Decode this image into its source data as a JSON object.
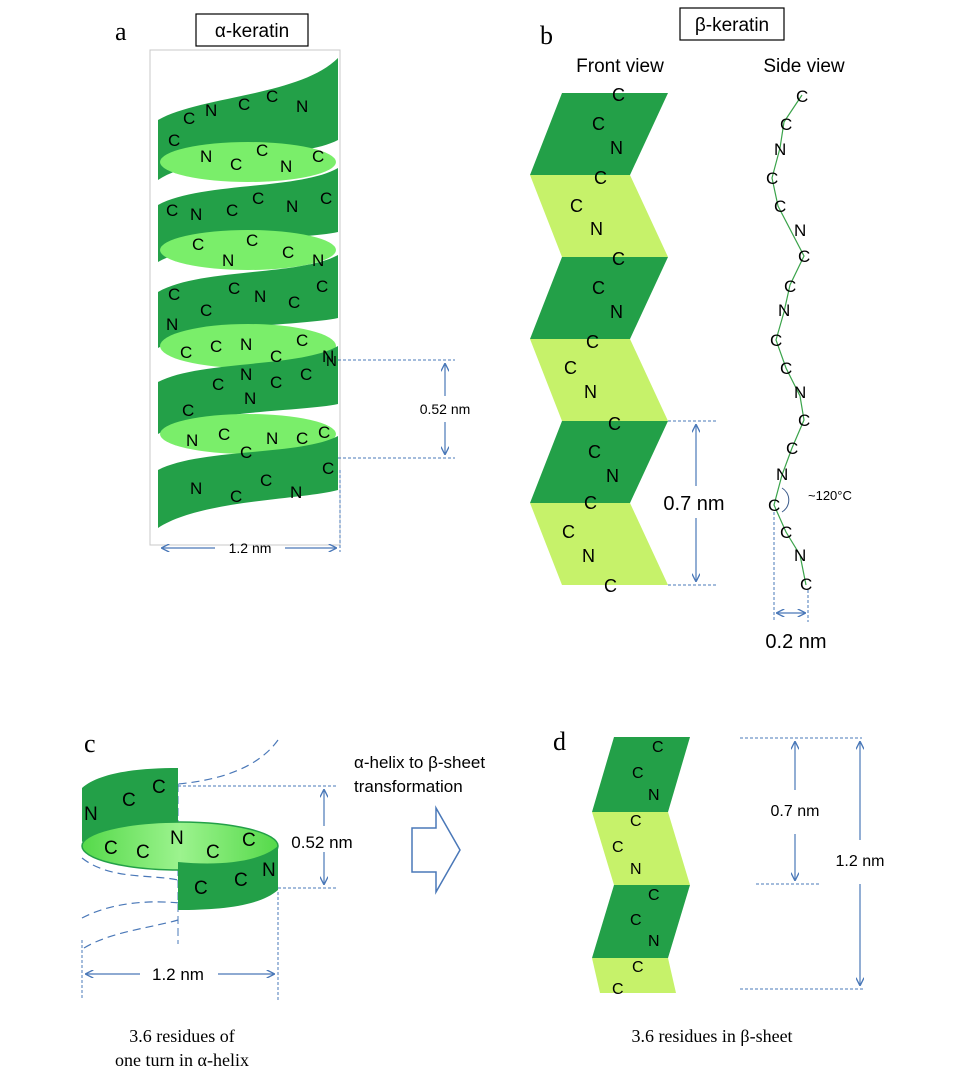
{
  "panel_a": {
    "letter": "a",
    "title": "α-keratin",
    "dim_pitch": "0.52 nm",
    "dim_width": "1.2 nm",
    "residues": [
      [
        "C",
        "N",
        "C",
        "N"
      ],
      [
        "C",
        "C"
      ],
      [
        "C",
        "N",
        "C",
        "N",
        "C"
      ],
      [
        "C",
        "N",
        "C",
        "N",
        "C"
      ],
      [
        "C",
        "N",
        "C",
        "N",
        "C"
      ],
      [
        "C",
        "N",
        "C",
        "N"
      ],
      [
        "N",
        "C",
        "C",
        "C",
        "C"
      ],
      [
        "C",
        "C",
        "N",
        "C",
        "C",
        "N"
      ],
      [
        "C",
        "N",
        "C",
        "C"
      ],
      [
        "C",
        "N",
        "C"
      ],
      [
        "N",
        "C",
        "N",
        "C"
      ],
      [
        "C",
        "N",
        "C",
        "C"
      ],
      [
        "N",
        "C",
        "C",
        "N",
        "C"
      ]
    ]
  },
  "panel_b": {
    "letter": "b",
    "title": "β-keratin",
    "front_label": "Front view",
    "side_label": "Side view",
    "dim_front": "0.7 nm",
    "dim_side": "0.2 nm",
    "angle_label": "~120°C",
    "front_residues": [
      [
        "C",
        "C",
        "N"
      ],
      [
        "C",
        "C",
        "N"
      ],
      [
        "C",
        "C",
        "N"
      ],
      [
        "C",
        "C",
        "N"
      ],
      [
        "C",
        "C",
        "N"
      ],
      [
        "C",
        "N",
        "C"
      ]
    ],
    "side_residues": [
      "C",
      "C",
      "N",
      "C",
      "C",
      "N",
      "C",
      "C",
      "N",
      "C",
      "C",
      "N",
      "C",
      "C",
      "N",
      "C",
      "C",
      "N",
      "C"
    ]
  },
  "panel_c": {
    "letter": "c",
    "dim_pitch": "0.52 nm",
    "dim_width": "1.2 nm",
    "caption_line1": "3.6 residues of",
    "caption_line2": "one turn in α-helix",
    "residues_top": [
      "N",
      "C",
      "C"
    ],
    "residues_mid": [
      "C",
      "C",
      "N",
      "C",
      "C"
    ],
    "residues_bottom": [
      "C",
      "C",
      "N"
    ]
  },
  "transform": {
    "line1": "α-helix to β-sheet",
    "line2": "transformation"
  },
  "panel_d": {
    "letter": "d",
    "dim_small": "0.7 nm",
    "dim_large": "1.2 nm",
    "caption": "3.6 residues in β-sheet",
    "residues": [
      [
        "C",
        "C",
        "N"
      ],
      [
        "C",
        "C",
        "N"
      ],
      [
        "C",
        "C",
        "N"
      ],
      [
        "C",
        "C"
      ]
    ]
  },
  "colors": {
    "dark_green": "#23a048",
    "light_green": "#c6f26a",
    "pale_green": "#7aee6a",
    "dim_blue": "#4a78b8"
  }
}
